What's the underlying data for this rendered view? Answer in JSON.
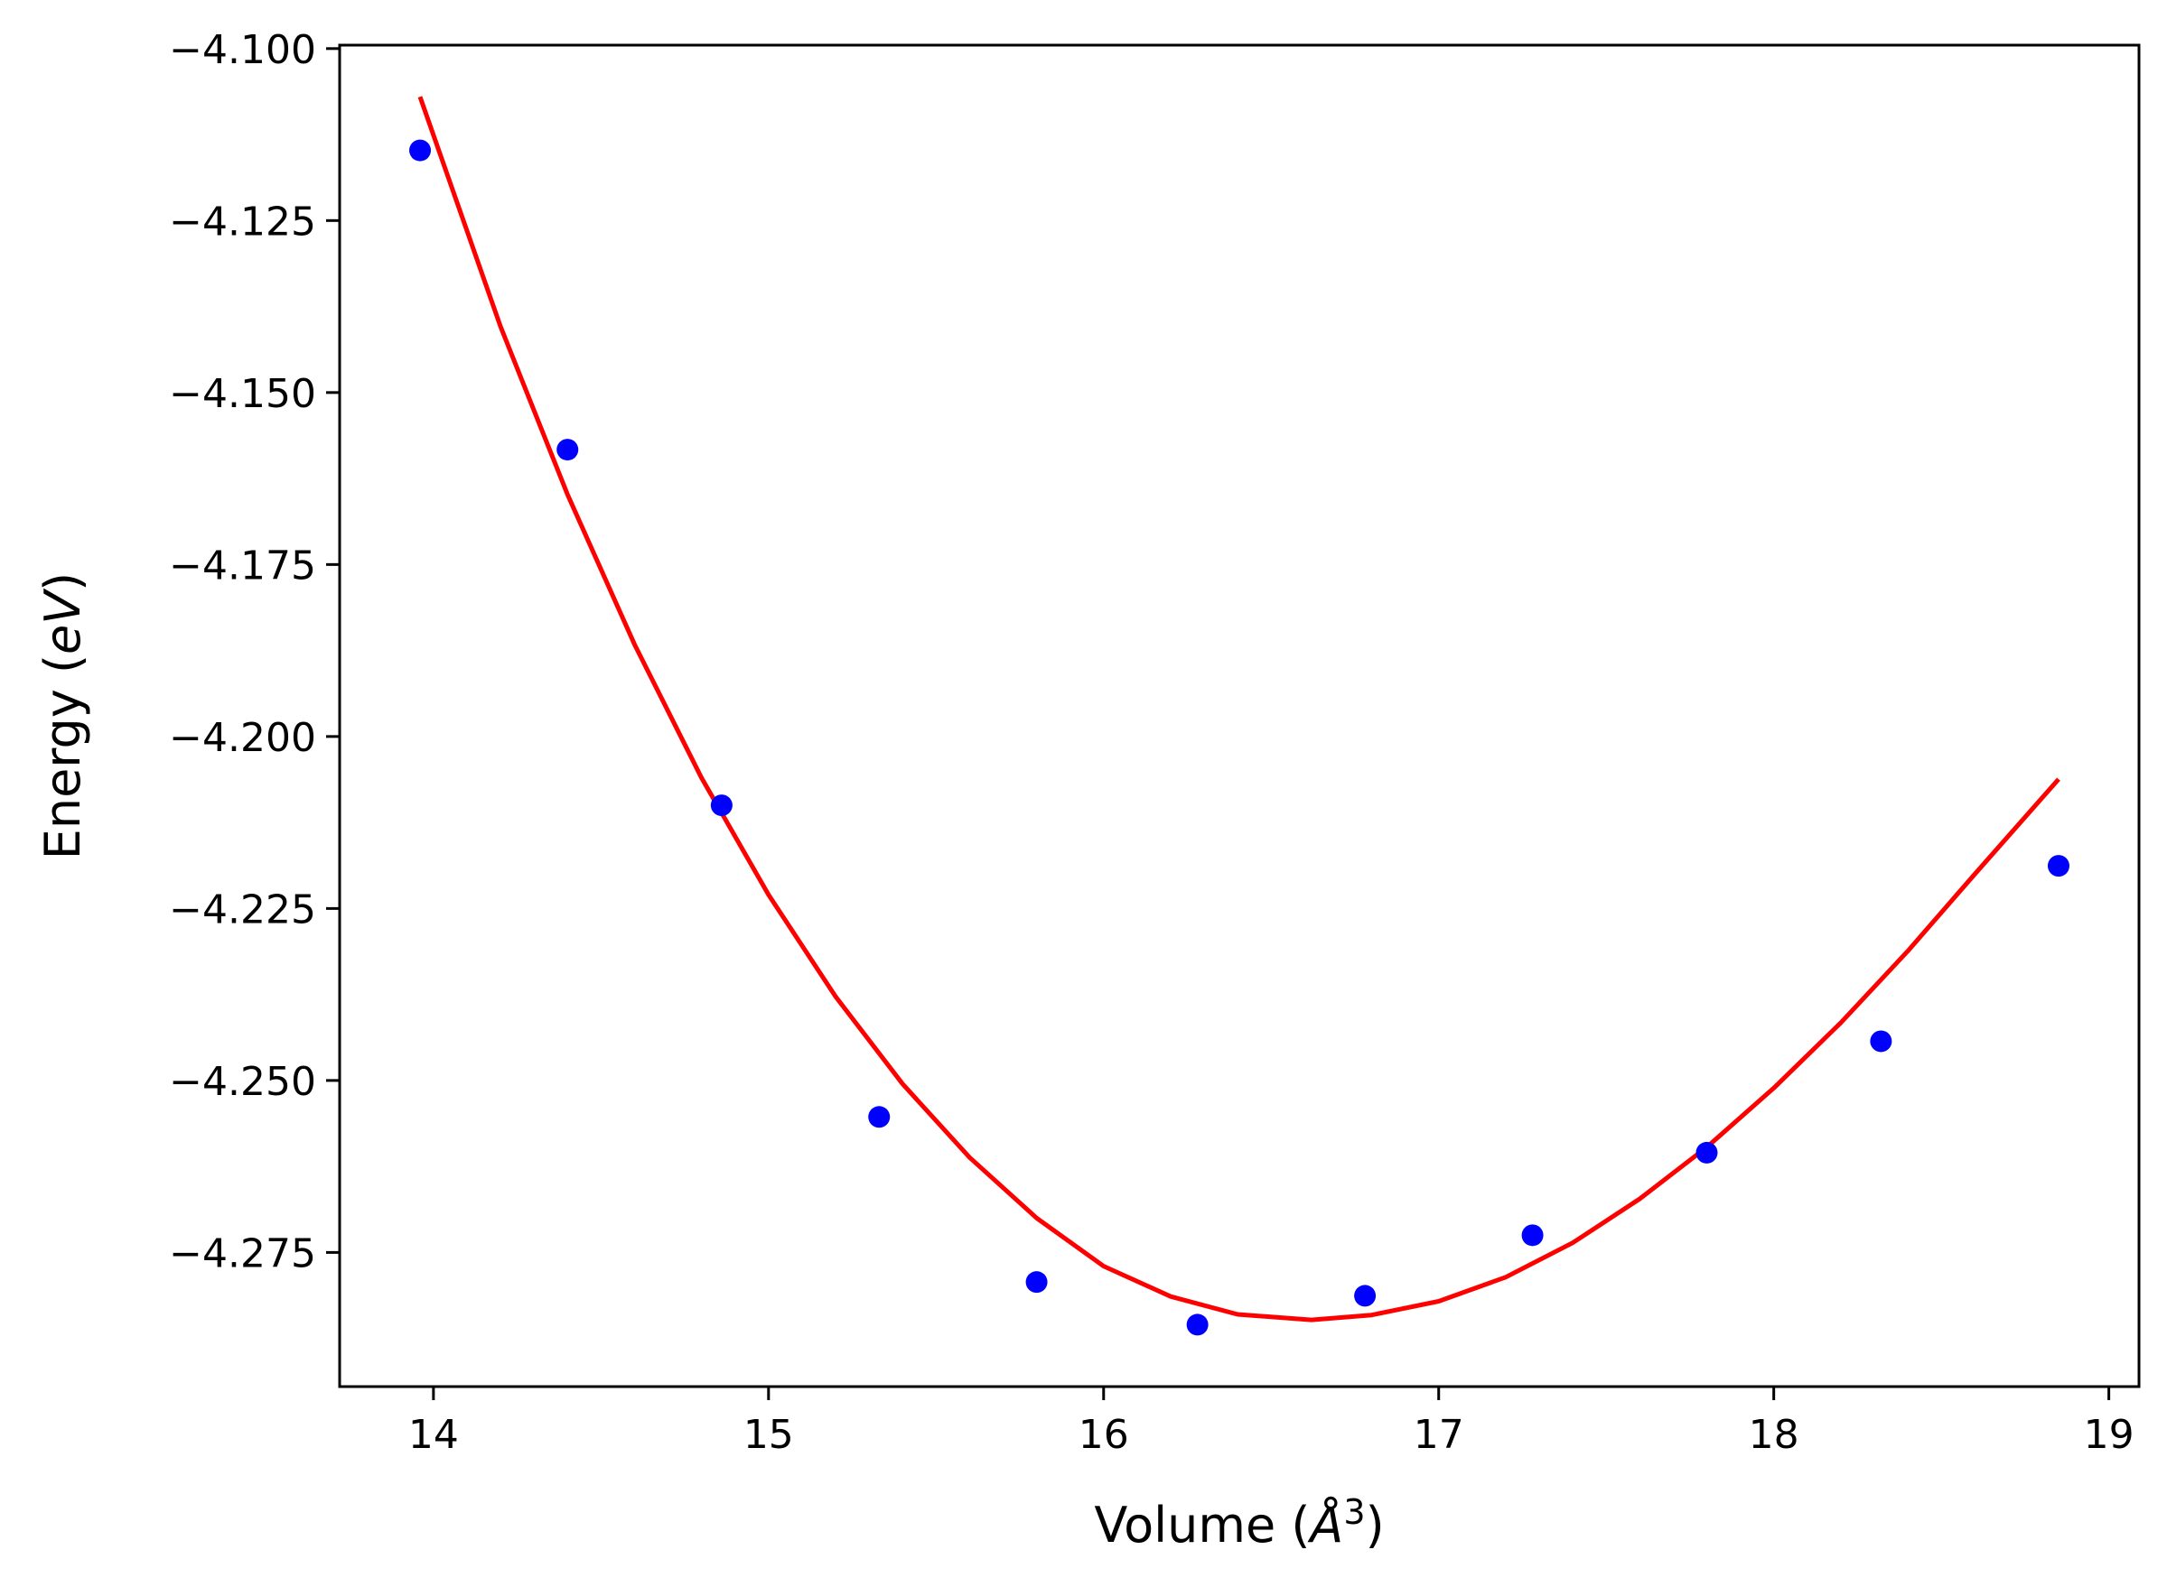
{
  "chart_data": {
    "type": "scatter",
    "xlabel_text": "Volume (",
    "xlabel_symbol": "Å",
    "xlabel_exp": "3",
    "xlabel_close": ")",
    "ylabel_text": "Energy (",
    "ylabel_unit": "eV",
    "ylabel_close": ")",
    "xlim": [
      13.72,
      19.09
    ],
    "ylim": [
      -4.2945,
      -4.0995
    ],
    "x_ticks": [
      14,
      15,
      16,
      17,
      18,
      19
    ],
    "x_tick_labels": [
      "14",
      "15",
      "16",
      "17",
      "18",
      "19"
    ],
    "y_ticks": [
      -4.1,
      -4.125,
      -4.15,
      -4.175,
      -4.2,
      -4.225,
      -4.25,
      -4.275
    ],
    "y_tick_labels": [
      "−4.100",
      "−4.125",
      "−4.150",
      "−4.175",
      "−4.200",
      "−4.225",
      "−4.250",
      "−4.275"
    ],
    "grid": false,
    "series": [
      {
        "kind": "points",
        "color": "#0000ff",
        "x": [
          13.96,
          14.4,
          14.86,
          15.33,
          15.8,
          16.28,
          16.78,
          17.28,
          17.8,
          18.32,
          18.85
        ],
        "y": [
          -4.1148,
          -4.1583,
          -4.21,
          -4.2553,
          -4.2793,
          -4.2855,
          -4.2813,
          -4.2725,
          -4.2605,
          -4.2443,
          -4.2188
        ]
      },
      {
        "kind": "fit-curve",
        "color": "#ff0000",
        "x": [
          13.96,
          14.2,
          14.4,
          14.6,
          14.8,
          15.0,
          15.2,
          15.4,
          15.6,
          15.8,
          16.0,
          16.2,
          16.4,
          16.62,
          16.8,
          17.0,
          17.2,
          17.4,
          17.6,
          17.8,
          18.0,
          18.2,
          18.4,
          18.6,
          18.85
        ],
        "y": [
          -4.107,
          -4.1404,
          -4.1648,
          -4.1866,
          -4.206,
          -4.223,
          -4.2378,
          -4.2505,
          -4.2612,
          -4.27,
          -4.277,
          -4.2814,
          -4.284,
          -4.2848,
          -4.2841,
          -4.2821,
          -4.2786,
          -4.2736,
          -4.2672,
          -4.2597,
          -4.2511,
          -4.2416,
          -4.2312,
          -4.22,
          -4.2062
        ]
      }
    ]
  }
}
